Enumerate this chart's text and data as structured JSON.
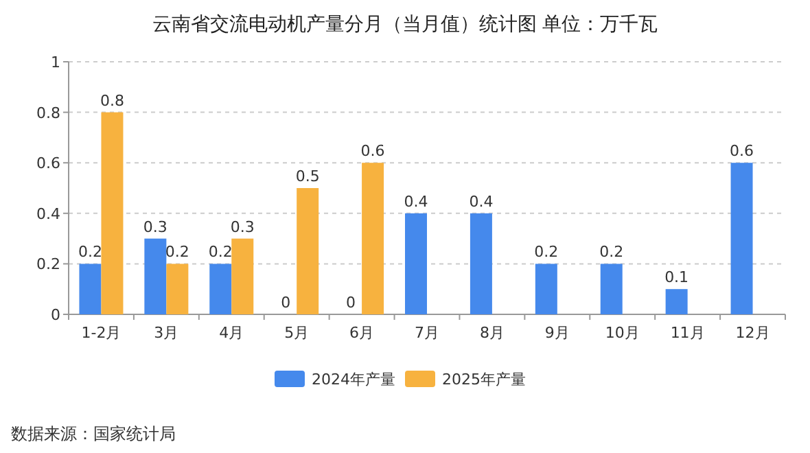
{
  "chart_data": {
    "type": "bar",
    "title": "云南省交流电动机产量分月（当月值）统计图 单位：万千瓦",
    "categories": [
      "1-2月",
      "3月",
      "4月",
      "5月",
      "6月",
      "7月",
      "8月",
      "9月",
      "10月",
      "11月",
      "12月"
    ],
    "series": [
      {
        "name": "2024年产量",
        "color": "#4589ec",
        "values": [
          0.2,
          0.3,
          0.2,
          0,
          0,
          0.4,
          0.4,
          0.2,
          0.2,
          0.1,
          0.6
        ]
      },
      {
        "name": "2025年产量",
        "color": "#f7b23f",
        "values": [
          0.8,
          0.2,
          0.3,
          0.5,
          0.6,
          null,
          null,
          null,
          null,
          null,
          null
        ]
      }
    ],
    "ylim": [
      0,
      1
    ],
    "yticks": [
      0,
      0.2,
      0.4,
      0.6,
      0.8,
      1
    ],
    "grid": "y",
    "legend": "bottom",
    "data_labels": true,
    "annotations": [
      "数据来源：国家统计局"
    ]
  }
}
